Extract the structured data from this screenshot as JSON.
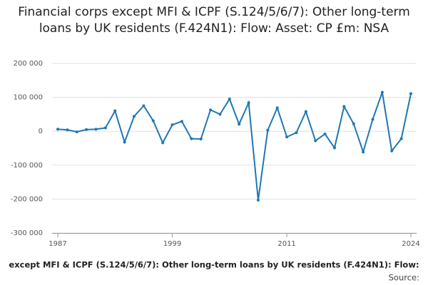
{
  "chart_data": {
    "type": "line",
    "title": "Financial corps except MFI & ICPF (S.124/5/6/7): Other long-term loans by UK residents (F.424N1): Flow: Asset: CP £m: NSA",
    "x_label": "except MFI & ICPF (S.124/5/6/7): Other long-term loans by UK residents (F.424N1): Flow:",
    "source": "Source:",
    "x": [
      1987,
      1988,
      1989,
      1990,
      1991,
      1992,
      1993,
      1994,
      1995,
      1996,
      1997,
      1998,
      1999,
      2000,
      2001,
      2002,
      2003,
      2004,
      2005,
      2006,
      2007,
      2008,
      2009,
      2010,
      2011,
      2012,
      2013,
      2014,
      2015,
      2016,
      2017,
      2018,
      2019,
      2020,
      2021,
      2022,
      2023,
      2024
    ],
    "series": [
      {
        "color": "#1f77b4",
        "values": [
          6000,
          4000,
          -2000,
          5000,
          6000,
          10000,
          60000,
          -32000,
          44000,
          75000,
          31000,
          -34000,
          19000,
          29000,
          -22000,
          -23000,
          63000,
          50000,
          95000,
          21000,
          84000,
          -203000,
          3000,
          69000,
          -17000,
          -4000,
          58000,
          -28000,
          -8000,
          -49000,
          73000,
          22000,
          -61000,
          35000,
          115000,
          -58000,
          -22000,
          111000
        ]
      }
    ],
    "xlim": [
      1987,
      2024
    ],
    "xticks": [
      1987,
      1999,
      2011,
      2024
    ],
    "ylim": [
      -300000,
      200000
    ],
    "yticks": [
      {
        "value": -300000,
        "label": "-300 000"
      },
      {
        "value": -200000,
        "label": "-200 000"
      },
      {
        "value": -100000,
        "label": "-100 000"
      },
      0,
      {
        "value": 100000,
        "label": "100 000"
      },
      {
        "value": 200000,
        "label": "200 000"
      }
    ],
    "grid": true
  }
}
